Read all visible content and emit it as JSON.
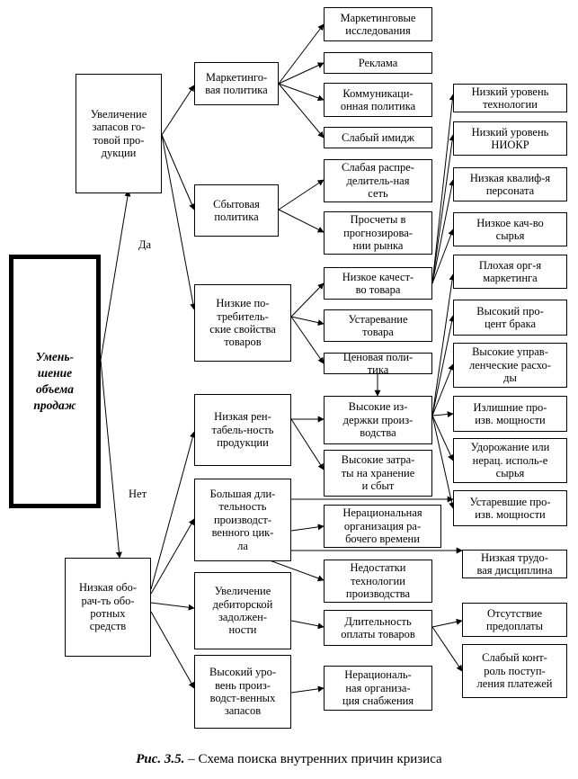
{
  "diagram": {
    "root": "Умень-\nшение\nобъема\nпродаж",
    "edges_labels": {
      "yes": "Да",
      "no": "Нет"
    },
    "level1": {
      "stock_increase": "Увеличение\nзапасов го-\nтовой про-\nдукции",
      "low_turnover": "Низкая обо-\nрач-ть обо-\nротных\nсредств"
    },
    "level2": {
      "marketing_policy": "Маркетинго-\nвая политика",
      "sales_policy": "Сбытовая\nполитика",
      "low_consumer_props": "Низкие по-\nтребитель-\nские свойства\nтоваров",
      "low_profitability": "Низкая рен-\nтабель-ность\nпродукции",
      "long_production_cycle": "Большая дли-\nтельность\nпроизводст-\nвенного цик-\nла",
      "receivables_increase": "Увеличение\nдебиторской\nзадолжен-\nности",
      "high_inventory": "Высокий уро-\nвень произ-\nводст-венных\nзапасов"
    },
    "level3": {
      "marketing_research": "Маркетинговые\nисследования",
      "advertising": "Реклама",
      "communication_policy": "Коммуникаци-\nонная политика",
      "weak_image": "Слабый имидж",
      "weak_distribution": "Слабая распре-\nделитель-ная\nсеть",
      "forecast_errors": "Просчеты в\nпрогнозирова-\nнии рынка",
      "low_quality": "Низкое качест-\nво товара",
      "product_obsolescence": "Устаревание\nтовара",
      "pricing_policy": "Ценовая поли-\nтика",
      "high_costs": "Высокие из-\nдержки произ-\nводства",
      "storage_costs": "Высокие затра-\nты на хранение\nи сбыт",
      "irrational_work_time": "Нерациональная\nорганизация ра-\nбочего времени",
      "tech_shortcomings": "Недостатки\nтехнологии\nпроизводства",
      "long_payment": "Длительность\nоплаты товаров",
      "irrational_supply": "Нерациональ-\nная организа-\nция снабжения"
    },
    "level4": {
      "low_tech_level": "Низкий уровень\nтехнологии",
      "low_rnd_level": "Низкий уровень\nНИОКР",
      "low_qualification": "Низкая квалиф-я\nперсоната",
      "low_raw_quality": "Низкое кач-во\nсырья",
      "poor_marketing_org": "Плохая орг-я\nмаркетинга",
      "high_defect_rate": "Высокий про-\nцент брака",
      "high_admin_costs": "Высокие управ-\nленческие расхо-\nды",
      "excess_capacity": "Излишние про-\nизв. мощности",
      "raw_cost_increase": "Удорожание или\nнерац. исполь-е\nсырья",
      "obsolete_capacity": "Устаревшие про-\nизв. мощности",
      "low_discipline": "Низкая трудо-\nвая дисциплина",
      "no_prepayment": "Отсутствие\nпредоплаты",
      "weak_payment_control": "Слабый конт-\nроль поступ-\nления платежей"
    }
  },
  "caption": {
    "figure": "Рис. 3.5.",
    "text": " – Схема поиска внутренних причин кризиса"
  }
}
